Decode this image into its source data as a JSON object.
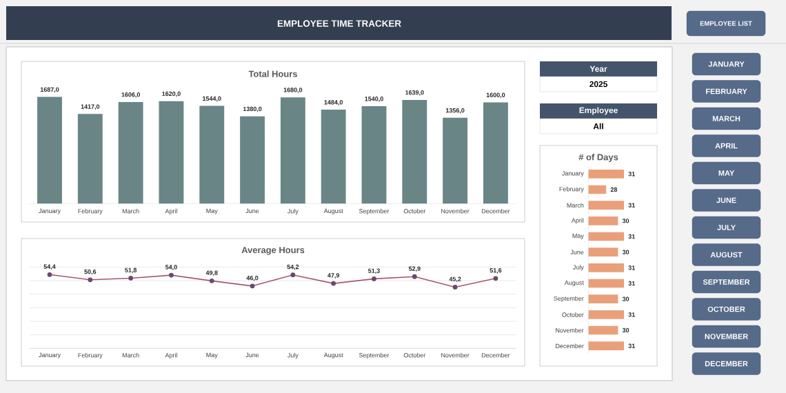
{
  "chart_data": [
    {
      "type": "other",
      "title": "EMPLOYEE TIME TRACKER",
      "annotations": [
        "EMPLOYEE LIST"
      ]
    },
    {
      "type": "bar",
      "title": "Total Hours",
      "categories": [
        "January",
        "February",
        "March",
        "April",
        "May",
        "June",
        "July",
        "August",
        "September",
        "October",
        "November",
        "December"
      ],
      "values": [
        1687,
        1417,
        1606,
        1620,
        1544,
        1380,
        1680,
        1484,
        1540,
        1639,
        1356,
        1600
      ],
      "value_labels": [
        "1687,0",
        "1417,0",
        "1606,0",
        "1620,0",
        "1544,0",
        "1380,0",
        "1680,0",
        "1484,0",
        "1540,0",
        "1639,0",
        "1356,0",
        "1600,0"
      ],
      "color": "#6a8585",
      "tick_labels": "x"
    },
    {
      "type": "line",
      "title": "Average Hours",
      "categories": [
        "January",
        "February",
        "March",
        "April",
        "May",
        "June",
        "July",
        "August",
        "September",
        "October",
        "November",
        "December"
      ],
      "values": [
        54.4,
        50.6,
        51.8,
        54.0,
        49.8,
        46.0,
        54.2,
        47.9,
        51.3,
        52.9,
        45.2,
        51.6
      ],
      "value_labels": [
        "54,4",
        "50,6",
        "51,8",
        "54,0",
        "49,8",
        "46,0",
        "54,2",
        "47,9",
        "51,3",
        "52,9",
        "45,2",
        "51,6"
      ],
      "color": "#a5586f",
      "marker": "circle",
      "ylim": [
        0,
        60
      ],
      "yticks": [
        {
          "value": 0,
          "label": null
        },
        {
          "value": 10,
          "label": null
        },
        {
          "value": 20,
          "label": null
        },
        {
          "value": 30,
          "label": null
        },
        {
          "value": 40,
          "label": null
        },
        {
          "value": 50,
          "label": null
        },
        {
          "value": 60,
          "label": null
        }
      ],
      "grid": "y",
      "tick_labels": "x"
    },
    {
      "type": "other",
      "title": "Year",
      "annotations": [
        "2025"
      ]
    },
    {
      "type": "other",
      "title": "Employee",
      "annotations": [
        "All"
      ]
    },
    {
      "type": "bar",
      "orientation": "horizontal",
      "title": "# of Days",
      "categories": [
        "January",
        "February",
        "March",
        "April",
        "May",
        "June",
        "July",
        "August",
        "September",
        "October",
        "November",
        "December"
      ],
      "values": [
        31,
        28,
        31,
        30,
        31,
        30,
        31,
        31,
        30,
        31,
        30,
        31
      ],
      "data_labels": true,
      "color": "#e9a07a",
      "xlim": [
        25,
        31
      ],
      "tick_labels": "y"
    },
    {
      "type": "other",
      "annotations": [
        "JANUARY",
        "FEBRUARY",
        "MARCH",
        "APRIL",
        "MAY",
        "JUNE",
        "JULY",
        "AUGUST",
        "SEPTEMBER",
        "OCTOBER",
        "NOVEMBER",
        "DECEMBER"
      ]
    }
  ]
}
